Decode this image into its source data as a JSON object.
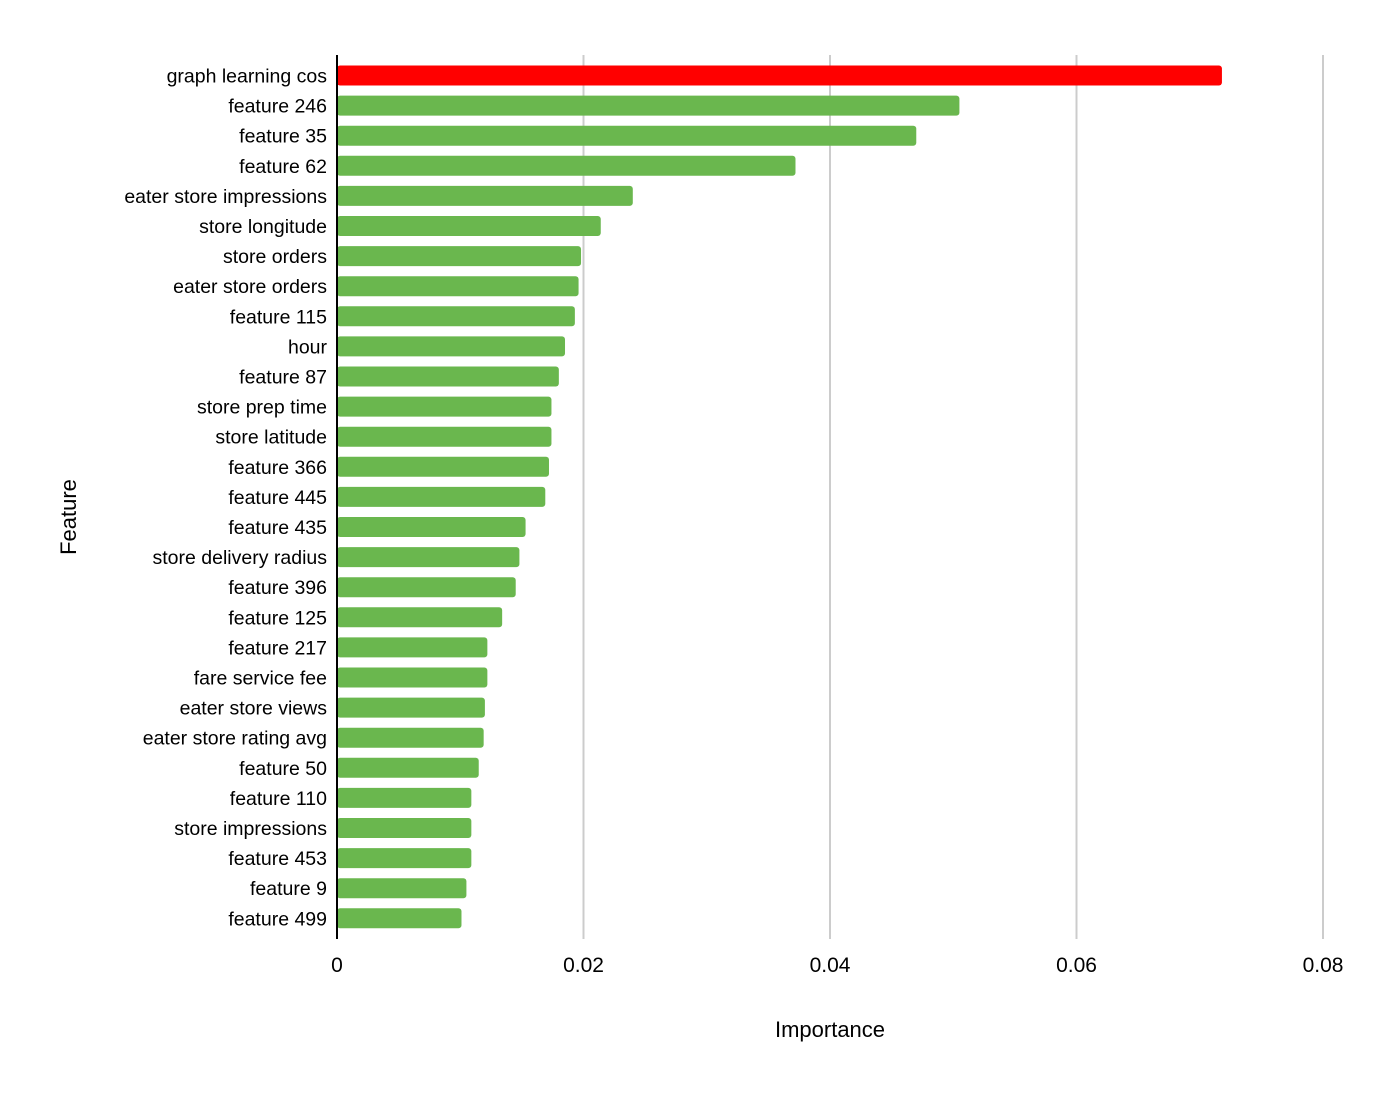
{
  "chart_data": {
    "type": "bar",
    "orientation": "horizontal",
    "xlabel": "Importance",
    "ylabel": "Feature",
    "xlim": [
      0,
      0.08
    ],
    "xticks": [
      "0",
      "0.02",
      "0.04",
      "0.06",
      "0.08"
    ],
    "xtick_values": [
      0,
      0.02,
      0.04,
      0.06,
      0.08
    ],
    "grid": "vertical",
    "legend": "none",
    "highlight_color": "#ff0000",
    "bar_color": "#6ab74e",
    "categories": [
      "graph learning cos",
      "feature 246",
      "feature 35",
      "feature 62",
      "eater store impressions",
      "store longitude",
      "store orders",
      "eater store orders",
      "feature 115",
      "hour",
      "feature 87",
      "store prep time",
      "store latitude",
      "feature 366",
      "feature 445",
      "feature 435",
      "store delivery radius",
      "feature 396",
      "feature 125",
      "feature 217",
      "fare service fee",
      "eater store views",
      "eater store rating avg",
      "feature 50",
      "feature 110",
      "store impressions",
      "feature 453",
      "feature 9",
      "feature 499"
    ],
    "values": [
      0.0718,
      0.0505,
      0.047,
      0.0372,
      0.024,
      0.0214,
      0.0198,
      0.0196,
      0.0193,
      0.0185,
      0.018,
      0.0174,
      0.0174,
      0.0172,
      0.0169,
      0.0153,
      0.0148,
      0.0145,
      0.0134,
      0.0122,
      0.0122,
      0.012,
      0.0119,
      0.0115,
      0.0109,
      0.0109,
      0.0109,
      0.0105,
      0.0101
    ],
    "highlighted": [
      0
    ]
  }
}
